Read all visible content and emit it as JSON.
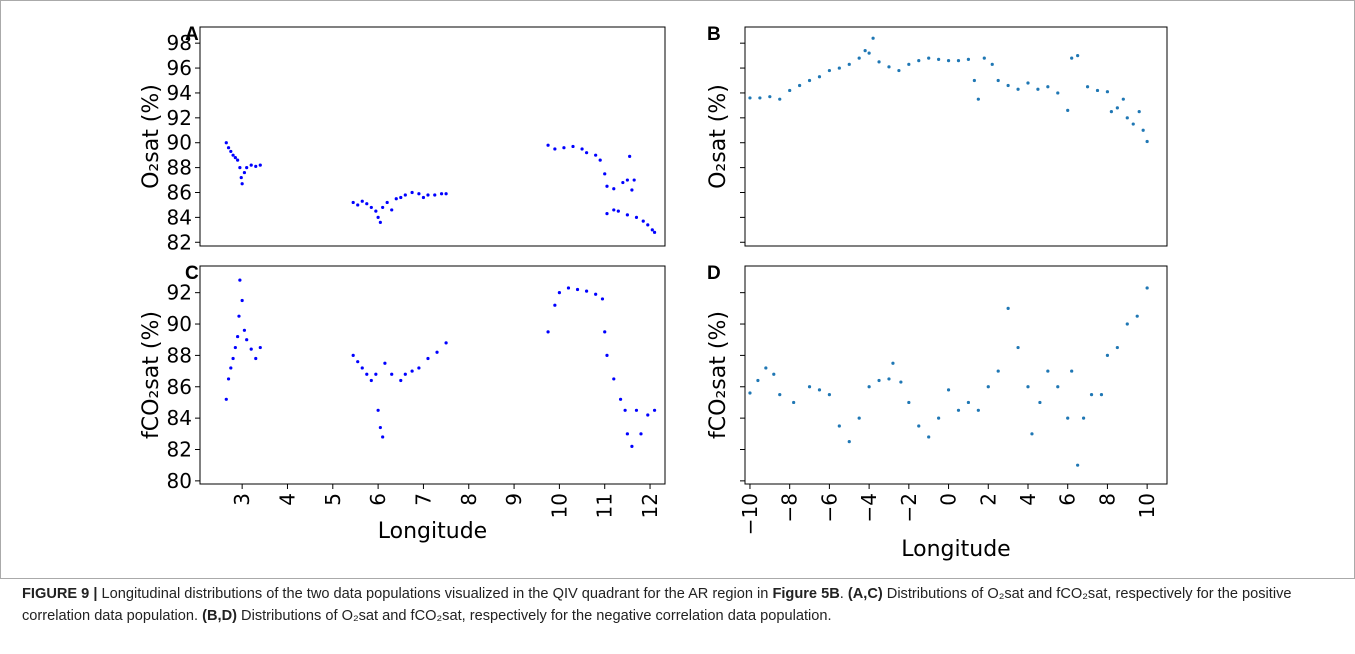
{
  "chart_data": [
    {
      "type": "scatter",
      "panel": "A",
      "ylabel": "O₂sat (%)",
      "color": "#0000ff",
      "xlim": [
        2.07,
        12.33
      ],
      "ylim": [
        81.7,
        99.3
      ],
      "yticks": [
        82,
        84,
        86,
        88,
        90,
        92,
        94,
        96,
        98
      ],
      "x": [
        2.65,
        2.7,
        2.75,
        2.8,
        2.85,
        2.9,
        2.95,
        2.98,
        3.0,
        3.05,
        3.1,
        3.2,
        3.3,
        3.4,
        5.45,
        5.55,
        5.65,
        5.75,
        5.85,
        5.95,
        6.0,
        6.05,
        6.1,
        6.2,
        6.3,
        6.4,
        6.5,
        6.6,
        6.75,
        6.9,
        7.0,
        7.1,
        7.25,
        7.4,
        7.5,
        9.75,
        9.9,
        10.1,
        10.3,
        10.5,
        10.6,
        10.8,
        10.9,
        11.0,
        11.05,
        11.2,
        11.4,
        11.5,
        11.55,
        11.6,
        11.65,
        11.05,
        11.2,
        11.3,
        11.5,
        11.7,
        11.85,
        11.95,
        12.05,
        12.1
      ],
      "values": [
        90.0,
        89.6,
        89.3,
        89.0,
        88.8,
        88.6,
        88.0,
        87.2,
        86.7,
        87.6,
        88.0,
        88.2,
        88.1,
        88.2,
        85.2,
        85.0,
        85.3,
        85.1,
        84.8,
        84.5,
        84.0,
        83.6,
        84.8,
        85.2,
        84.6,
        85.5,
        85.6,
        85.8,
        86.0,
        85.9,
        85.6,
        85.8,
        85.8,
        85.9,
        85.9,
        89.8,
        89.5,
        89.6,
        89.7,
        89.5,
        89.2,
        89.0,
        88.6,
        87.5,
        86.5,
        86.3,
        86.8,
        87.0,
        88.9,
        86.2,
        87.0,
        84.3,
        84.6,
        84.5,
        84.2,
        84.0,
        83.7,
        83.4,
        83.0,
        82.8
      ]
    },
    {
      "type": "scatter",
      "panel": "B",
      "ylabel": "O₂sat (%)",
      "color": "#1f77b4",
      "xlim": [
        -10.25,
        11.0
      ],
      "ylim": [
        81.7,
        99.3
      ],
      "yticks": [
        82,
        84,
        86,
        88,
        90,
        92,
        94,
        96,
        98
      ],
      "ytick_labels": false,
      "x": [
        -10,
        -9.5,
        -9,
        -8.5,
        -8,
        -7.5,
        -7,
        -6.5,
        -6,
        -5.5,
        -5,
        -4.5,
        -4.2,
        -4,
        -3.8,
        -3.5,
        -3,
        -2.5,
        -2,
        -1.5,
        -1,
        -0.5,
        0,
        0.5,
        1,
        1.3,
        1.5,
        1.8,
        2.2,
        2.5,
        3,
        3.5,
        4,
        4.5,
        5,
        5.5,
        6,
        6.2,
        6.5,
        7,
        7.5,
        8,
        8.2,
        8.5,
        8.8,
        9,
        9.3,
        9.6,
        9.8,
        10
      ],
      "values": [
        93.6,
        93.6,
        93.7,
        93.5,
        94.2,
        94.6,
        95.0,
        95.3,
        95.8,
        96.0,
        96.3,
        96.8,
        97.4,
        97.2,
        98.4,
        96.5,
        96.1,
        95.8,
        96.3,
        96.6,
        96.8,
        96.7,
        96.6,
        96.6,
        96.7,
        95.0,
        93.5,
        96.8,
        96.3,
        95.0,
        94.6,
        94.3,
        94.8,
        94.3,
        94.5,
        94.0,
        92.6,
        96.8,
        97.0,
        94.5,
        94.2,
        94.1,
        92.5,
        92.8,
        93.5,
        92.0,
        91.5,
        92.5,
        91.0,
        90.1
      ]
    },
    {
      "type": "scatter",
      "panel": "C",
      "ylabel": "fCO₂sat (%)",
      "xlabel": "Longitude",
      "color": "#0000ff",
      "xlim": [
        2.07,
        12.33
      ],
      "ylim": [
        79.8,
        93.7
      ],
      "yticks": [
        80,
        82,
        84,
        86,
        88,
        90,
        92
      ],
      "xticks": [
        3,
        4,
        5,
        6,
        7,
        8,
        9,
        10,
        11,
        12
      ],
      "x": [
        2.65,
        2.7,
        2.75,
        2.8,
        2.85,
        2.9,
        2.93,
        2.95,
        3.0,
        3.05,
        3.1,
        3.2,
        3.3,
        3.4,
        5.45,
        5.55,
        5.65,
        5.75,
        5.85,
        5.95,
        6.0,
        6.05,
        6.1,
        6.15,
        6.3,
        6.5,
        6.6,
        6.75,
        6.9,
        7.1,
        7.3,
        7.5,
        9.75,
        9.9,
        10.0,
        10.2,
        10.4,
        10.6,
        10.8,
        10.95,
        11.0,
        11.05,
        11.2,
        11.35,
        11.45,
        11.5,
        11.6,
        11.7,
        11.8,
        11.95,
        12.1
      ],
      "values": [
        85.2,
        86.5,
        87.2,
        87.8,
        88.5,
        89.2,
        90.5,
        92.8,
        91.5,
        89.6,
        89.0,
        88.4,
        87.8,
        88.5,
        88.0,
        87.6,
        87.2,
        86.8,
        86.4,
        86.8,
        84.5,
        83.4,
        82.8,
        87.5,
        86.8,
        86.4,
        86.8,
        87.0,
        87.2,
        87.8,
        88.2,
        88.8,
        89.5,
        91.2,
        92.0,
        92.3,
        92.2,
        92.1,
        91.9,
        91.6,
        89.5,
        88.0,
        86.5,
        85.2,
        84.5,
        83.0,
        82.2,
        84.5,
        83.0,
        84.2,
        84.5
      ]
    },
    {
      "type": "scatter",
      "panel": "D",
      "ylabel": "fCO₂sat (%)",
      "xlabel": "Longitude",
      "color": "#1f77b4",
      "xlim": [
        -10.25,
        11.0
      ],
      "ylim": [
        79.8,
        93.7
      ],
      "yticks": [
        80,
        82,
        84,
        86,
        88,
        90,
        92
      ],
      "ytick_labels": false,
      "xticks": [
        {
          "value": -10,
          "label": "−10"
        },
        {
          "value": -8,
          "label": "−8"
        },
        {
          "value": -6,
          "label": "−6"
        },
        {
          "value": -4,
          "label": "−4"
        },
        {
          "value": -2,
          "label": "−2"
        },
        0,
        2,
        4,
        6,
        8,
        10
      ],
      "x": [
        -10,
        -9.6,
        -9.2,
        -8.8,
        -8.5,
        -7.8,
        -7,
        -6.5,
        -6,
        -5.5,
        -5,
        -4.5,
        -4,
        -3.5,
        -3,
        -2.8,
        -2.4,
        -2,
        -1.5,
        -1,
        -0.5,
        0,
        0.5,
        1,
        1.5,
        2,
        2.5,
        3,
        3.5,
        4,
        4.2,
        4.6,
        5,
        5.5,
        6,
        6.2,
        6.5,
        6.8,
        7.2,
        7.7,
        8,
        8.5,
        9,
        9.5,
        10
      ],
      "values": [
        85.6,
        86.4,
        87.2,
        86.8,
        85.5,
        85.0,
        86.0,
        85.8,
        85.5,
        83.5,
        82.5,
        84.0,
        86.0,
        86.4,
        86.5,
        87.5,
        86.3,
        85.0,
        83.5,
        82.8,
        84.0,
        85.8,
        84.5,
        85.0,
        84.5,
        86.0,
        87.0,
        91.0,
        88.5,
        86.0,
        83.0,
        85.0,
        87.0,
        86.0,
        84.0,
        87.0,
        81.0,
        84.0,
        85.5,
        85.5,
        88.0,
        88.5,
        90.0,
        90.5,
        92.3
      ]
    }
  ],
  "caption": [
    {
      "text": "FIGURE 9 |",
      "bold": true
    },
    {
      "text": " Longitudinal distributions of the two data populations visualized in the QIV quadrant for the AR region in ",
      "bold": false
    },
    {
      "text": "Figure 5B",
      "bold": true
    },
    {
      "text": ". ",
      "bold": false
    },
    {
      "text": "(A,C)",
      "bold": true
    },
    {
      "text": " Distributions of O₂sat and fCO₂sat, respectively for the positive correlation data population. ",
      "bold": false
    },
    {
      "text": "(B,D)",
      "bold": true
    },
    {
      "text": " Distributions of O₂sat and fCO₂sat, respectively for the negative correlation data population.",
      "bold": false
    }
  ]
}
